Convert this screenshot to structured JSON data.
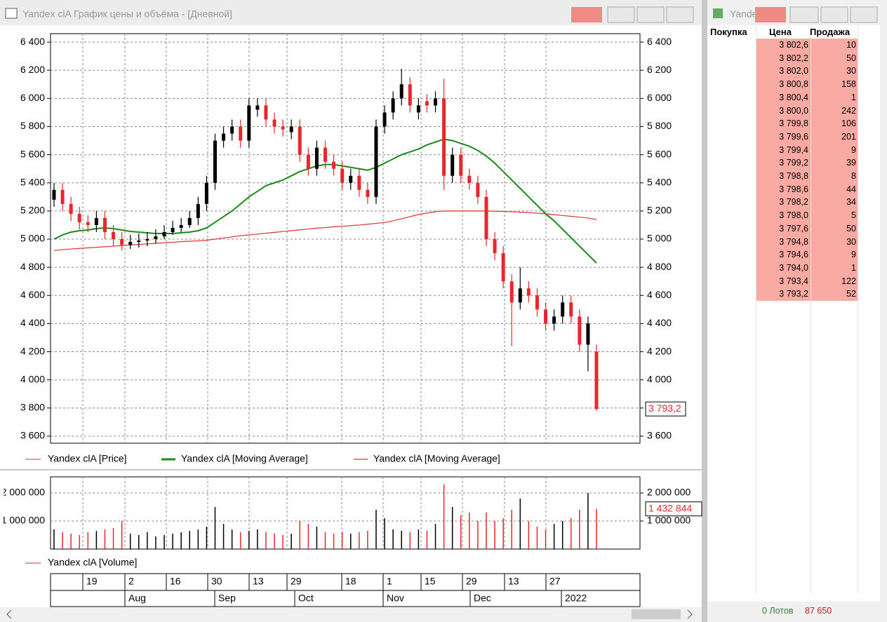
{
  "window": {
    "title": "Yandex clA График цены и объёма - [Дневной]",
    "right_title": "Yande"
  },
  "chart_data": [
    {
      "type": "candlestick",
      "price_name": "Yandex clA [Price]",
      "up_color": "#000000",
      "down_color": "#e8262c",
      "open": [
        5280,
        5350,
        5250,
        5180,
        5120,
        5100,
        5150,
        5050,
        5000,
        4960,
        4980,
        4990,
        5000,
        5020,
        5050,
        5080,
        5100,
        5150,
        5250,
        5400,
        5700,
        5750,
        5800,
        5700,
        5920,
        5950,
        5850,
        5800,
        5760,
        5800,
        5600,
        5500,
        5650,
        5550,
        5500,
        5400,
        5450,
        5350,
        5300,
        5800,
        5900,
        6000,
        6100,
        5900,
        5980,
        5950,
        6000,
        5450,
        5600,
        5450,
        5400,
        5300,
        5000,
        4900,
        4700,
        4550,
        4650,
        4600,
        4500,
        4400,
        4450,
        4550,
        4450,
        4250,
        4200
      ],
      "high": [
        5400,
        5400,
        5300,
        5230,
        5170,
        5200,
        5200,
        5100,
        5050,
        5030,
        5040,
        5050,
        5070,
        5100,
        5130,
        5150,
        5200,
        5300,
        5450,
        5750,
        5800,
        5850,
        5850,
        6000,
        6000,
        6000,
        5900,
        5850,
        5850,
        5850,
        5650,
        5700,
        5700,
        5600,
        5550,
        5500,
        5500,
        5400,
        5850,
        5950,
        6050,
        6210,
        6150,
        6000,
        6030,
        6050,
        6140,
        5650,
        5650,
        5500,
        5450,
        5350,
        5050,
        4950,
        4750,
        4800,
        4700,
        4650,
        4550,
        4500,
        4600,
        4600,
        4500,
        4450,
        4250
      ],
      "low": [
        5230,
        5200,
        5130,
        5070,
        5050,
        5050,
        5000,
        4950,
        4920,
        4930,
        4940,
        4950,
        4970,
        5000,
        5030,
        5050,
        5080,
        5100,
        5200,
        5350,
        5650,
        5700,
        5650,
        5650,
        5870,
        5800,
        5750,
        5730,
        5710,
        5550,
        5450,
        5450,
        5500,
        5450,
        5350,
        5350,
        5300,
        5250,
        5250,
        5750,
        5850,
        5950,
        5900,
        5850,
        5900,
        5900,
        5350,
        5400,
        5400,
        5350,
        5250,
        4950,
        4850,
        4650,
        4240,
        4500,
        4550,
        4450,
        4350,
        4350,
        4400,
        4400,
        4200,
        4060,
        3780
      ],
      "close": [
        5350,
        5250,
        5180,
        5120,
        5100,
        5150,
        5050,
        5000,
        4960,
        4980,
        4990,
        5000,
        5020,
        5050,
        5080,
        5100,
        5150,
        5250,
        5400,
        5700,
        5750,
        5800,
        5700,
        5950,
        5950,
        5850,
        5800,
        5780,
        5800,
        5600,
        5500,
        5650,
        5550,
        5500,
        5400,
        5450,
        5350,
        5300,
        5800,
        5900,
        6000,
        6100,
        5950,
        5950,
        5950,
        6000,
        5450,
        5600,
        5450,
        5400,
        5300,
        5000,
        4900,
        4700,
        4550,
        4650,
        4600,
        4500,
        4400,
        4450,
        4550,
        4450,
        4250,
        4400,
        3793.2
      ],
      "last_label": "3 793,2",
      "series": [
        {
          "name": "Yandex clA [Moving Average]",
          "color": "#1a8a1a",
          "values": [
            5000,
            5030,
            5050,
            5060,
            5065,
            5075,
            5080,
            5075,
            5065,
            5055,
            5050,
            5045,
            5040,
            5040,
            5040,
            5045,
            5050,
            5060,
            5080,
            5120,
            5160,
            5200,
            5250,
            5300,
            5340,
            5380,
            5400,
            5420,
            5450,
            5480,
            5500,
            5520,
            5530,
            5530,
            5520,
            5510,
            5500,
            5490,
            5510,
            5540,
            5570,
            5600,
            5620,
            5640,
            5670,
            5690,
            5710,
            5700,
            5680,
            5660,
            5630,
            5590,
            5540,
            5480,
            5420,
            5360,
            5300,
            5240,
            5180,
            5130,
            5070,
            5010,
            4950,
            4890,
            4830
          ]
        },
        {
          "name": "Yandex clA [Moving Average]",
          "color": "#e03030",
          "values": [
            4920,
            4925,
            4930,
            4934,
            4938,
            4942,
            4946,
            4950,
            4954,
            4958,
            4962,
            4966,
            4970,
            4974,
            4978,
            4982,
            4985,
            4988,
            4992,
            5000,
            5008,
            5016,
            5024,
            5030,
            5036,
            5042,
            5048,
            5054,
            5060,
            5066,
            5072,
            5078,
            5082,
            5088,
            5092,
            5096,
            5100,
            5106,
            5112,
            5118,
            5130,
            5145,
            5160,
            5175,
            5185,
            5195,
            5200,
            5200,
            5200,
            5200,
            5200,
            5200,
            5198,
            5196,
            5194,
            5192,
            5188,
            5184,
            5180,
            5174,
            5168,
            5162,
            5156,
            5150,
            5140
          ]
        }
      ],
      "ylim": [
        3560,
        6480
      ],
      "yticks": [
        {
          "value": 3600,
          "label": "3 600"
        },
        {
          "value": 3800,
          "label": "3 800"
        },
        {
          "value": 4000,
          "label": "4 000"
        },
        {
          "value": 4200,
          "label": "4 200"
        },
        {
          "value": 4400,
          "label": "4 400"
        },
        {
          "value": 4600,
          "label": "4 600"
        },
        {
          "value": 4800,
          "label": "4 800"
        },
        {
          "value": 5000,
          "label": "5 000"
        },
        {
          "value": 5200,
          "label": "5 200"
        },
        {
          "value": 5400,
          "label": "5 400"
        },
        {
          "value": 5600,
          "label": "5 600"
        },
        {
          "value": 5800,
          "label": "5 800"
        },
        {
          "value": 6000,
          "label": "6 000"
        },
        {
          "value": 6200,
          "label": "6 200"
        },
        {
          "value": 6400,
          "label": "6 400"
        }
      ],
      "grid": true
    },
    {
      "type": "bar",
      "name": "Yandex clA [Volume]",
      "values": [
        700000,
        600000,
        550000,
        500000,
        600000,
        650000,
        700000,
        750000,
        1000000,
        550000,
        500000,
        600000,
        450000,
        500000,
        550000,
        600000,
        650000,
        700000,
        800000,
        1500000,
        900000,
        700000,
        600000,
        650000,
        700000,
        600000,
        550000,
        500000,
        550000,
        1000000,
        900000,
        800000,
        600000,
        550000,
        600000,
        550000,
        600000,
        650000,
        1400000,
        1100000,
        700000,
        650000,
        600000,
        700000,
        650000,
        900000,
        2300000,
        1500000,
        1200000,
        1300000,
        1000000,
        1300000,
        1000000,
        1100000,
        1400000,
        1800000,
        1000000,
        800000,
        700000,
        900000,
        1000000,
        1100000,
        1400000,
        2000000,
        1432844
      ],
      "last_label": "1 432 844",
      "ylim": [
        0,
        2500000
      ],
      "yticks": [
        {
          "value": 1000000,
          "label": "1 000 000"
        },
        {
          "value": 2000000,
          "label": "2 000 000"
        }
      ],
      "grid": true
    }
  ],
  "date_axis": {
    "days": [
      "19",
      "2",
      "16",
      "30",
      "13",
      "29",
      "18",
      "1",
      "15",
      "29",
      "13",
      "27"
    ],
    "months": [
      "Aug",
      "Sep",
      "Oct",
      "Nov",
      "Dec",
      "2022"
    ]
  },
  "order_book": {
    "headers": [
      "Покупка",
      "Цена",
      "Продажа"
    ],
    "rows": [
      [
        "3 802,6",
        10
      ],
      [
        "3 802,2",
        50
      ],
      [
        "3 802,0",
        30
      ],
      [
        "3 800,8",
        158
      ],
      [
        "3 800,4",
        1
      ],
      [
        "3 800,0",
        242
      ],
      [
        "3 799,8",
        106
      ],
      [
        "3 799,6",
        201
      ],
      [
        "3 799,4",
        9
      ],
      [
        "3 799,2",
        39
      ],
      [
        "3 798,8",
        8
      ],
      [
        "3 798,6",
        44
      ],
      [
        "3 798,2",
        34
      ],
      [
        "3 798,0",
        5
      ],
      [
        "3 797,6",
        50
      ],
      [
        "3 794,8",
        30
      ],
      [
        "3 794,6",
        9
      ],
      [
        "3 794,0",
        1
      ],
      [
        "3 793,4",
        122
      ],
      [
        "3 793,2",
        52
      ]
    ],
    "footer": {
      "lots": "0 Лотов",
      "total": "87 650"
    }
  }
}
